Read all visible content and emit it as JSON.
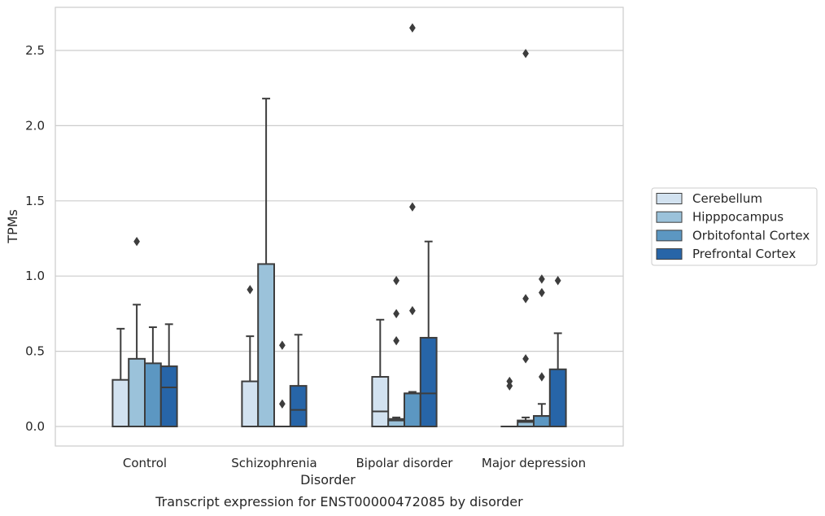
{
  "chart_data": {
    "type": "box",
    "title": "",
    "caption": "Transcript expression for ENST00000472085 by disorder",
    "xlabel": "Disorder",
    "ylabel": "TPMs",
    "ylim": [
      -0.13,
      2.8
    ],
    "yticks": [
      0.0,
      0.5,
      1.0,
      1.5,
      2.0,
      2.5
    ],
    "ytick_labels": [
      "0.0",
      "0.5",
      "1.0",
      "1.5",
      "2.0",
      "2.5"
    ],
    "grid": "horizontal",
    "legend_position": "right",
    "categories": [
      "Control",
      "Schizophrenia",
      "Bipolar disorder",
      "Major depression"
    ],
    "series": [
      {
        "name": "Cerebellum",
        "color": "#d2e2f0",
        "boxes": [
          {
            "whislo": 0.0,
            "q1": 0.0,
            "med": 0.0,
            "q3": 0.31,
            "whishi": 0.65,
            "fliers": []
          },
          {
            "whislo": 0.0,
            "q1": 0.0,
            "med": 0.0,
            "q3": 0.3,
            "whishi": 0.6,
            "fliers": [
              0.91
            ]
          },
          {
            "whislo": 0.0,
            "q1": 0.0,
            "med": 0.1,
            "q3": 0.33,
            "whishi": 0.71,
            "fliers": []
          },
          {
            "whislo": 0.0,
            "q1": 0.0,
            "med": 0.0,
            "q3": 0.0,
            "whishi": 0.0,
            "fliers": [
              0.27,
              0.3
            ]
          }
        ]
      },
      {
        "name": "Hipppocampus",
        "color": "#9bc2da",
        "boxes": [
          {
            "whislo": 0.0,
            "q1": 0.0,
            "med": 0.0,
            "q3": 0.45,
            "whishi": 0.81,
            "fliers": [
              1.23
            ]
          },
          {
            "whislo": 0.0,
            "q1": 0.0,
            "med": 0.0,
            "q3": 1.08,
            "whishi": 2.18,
            "fliers": []
          },
          {
            "whislo": 0.0,
            "q1": 0.0,
            "med": 0.04,
            "q3": 0.05,
            "whishi": 0.06,
            "fliers": [
              0.57,
              0.75,
              0.97
            ]
          },
          {
            "whislo": 0.0,
            "q1": 0.0,
            "med": 0.03,
            "q3": 0.04,
            "whishi": 0.06,
            "fliers": [
              0.45,
              0.85,
              2.48
            ]
          }
        ]
      },
      {
        "name": "Orbitofontal Cortex",
        "color": "#5c97c2",
        "boxes": [
          {
            "whislo": 0.0,
            "q1": 0.0,
            "med": 0.0,
            "q3": 0.42,
            "whishi": 0.66,
            "fliers": []
          },
          {
            "whislo": 0.0,
            "q1": 0.0,
            "med": 0.0,
            "q3": 0.0,
            "whishi": 0.0,
            "fliers": [
              0.15,
              0.54
            ]
          },
          {
            "whislo": 0.0,
            "q1": 0.0,
            "med": 0.22,
            "q3": 0.22,
            "whishi": 0.23,
            "fliers": [
              0.77,
              1.46,
              2.65
            ]
          },
          {
            "whislo": 0.0,
            "q1": 0.0,
            "med": 0.07,
            "q3": 0.07,
            "whishi": 0.15,
            "fliers": [
              0.33,
              0.89,
              0.98
            ]
          }
        ]
      },
      {
        "name": "Prefrontal Cortex",
        "color": "#2765a8",
        "boxes": [
          {
            "whislo": 0.0,
            "q1": 0.0,
            "med": 0.26,
            "q3": 0.4,
            "whishi": 0.68,
            "fliers": []
          },
          {
            "whislo": 0.0,
            "q1": 0.0,
            "med": 0.11,
            "q3": 0.27,
            "whishi": 0.61,
            "fliers": []
          },
          {
            "whislo": 0.0,
            "q1": 0.0,
            "med": 0.22,
            "q3": 0.59,
            "whishi": 1.23,
            "fliers": []
          },
          {
            "whislo": 0.0,
            "q1": 0.0,
            "med": 0.0,
            "q3": 0.38,
            "whishi": 0.62,
            "fliers": [
              0.97
            ]
          }
        ]
      }
    ]
  }
}
